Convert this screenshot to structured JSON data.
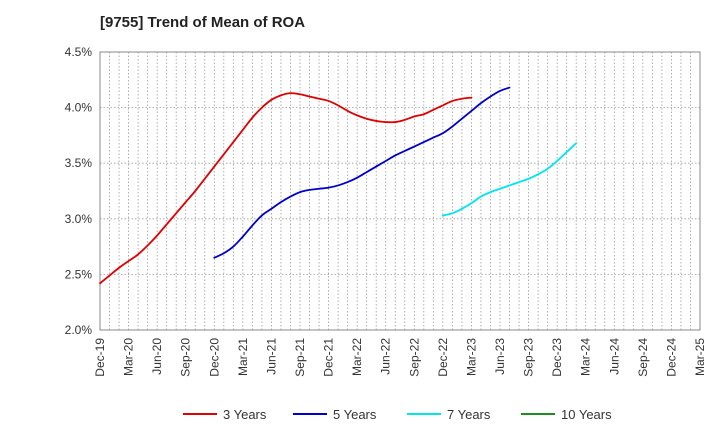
{
  "chart_data": {
    "type": "line",
    "title": "[9755]  Trend of Mean of ROA",
    "xlabel": "",
    "ylabel": "",
    "x_tick_labels": [
      "Dec-19",
      "Mar-20",
      "Jun-20",
      "Sep-20",
      "Dec-20",
      "Mar-21",
      "Jun-21",
      "Sep-21",
      "Dec-21",
      "Mar-22",
      "Jun-22",
      "Sep-22",
      "Dec-22",
      "Mar-23",
      "Jun-23",
      "Sep-23",
      "Dec-23",
      "Mar-24",
      "Jun-24",
      "Sep-24",
      "Dec-24",
      "Mar-25"
    ],
    "y_tick_labels": [
      "2.0%",
      "2.5%",
      "3.0%",
      "3.5%",
      "4.0%",
      "4.5%"
    ],
    "ylim": [
      2.0,
      4.5
    ],
    "grid": true,
    "legend_position": "bottom",
    "series": [
      {
        "name": "3 Years",
        "color": "#e00000",
        "values": [
          2.42,
          2.49,
          2.56,
          2.62,
          2.68,
          2.76,
          2.85,
          2.95,
          3.05,
          3.15,
          3.25,
          3.36,
          3.47,
          3.58,
          3.69,
          3.8,
          3.91,
          4.0,
          4.07,
          4.11,
          4.13,
          4.12,
          4.1,
          4.08,
          4.06,
          4.02,
          3.97,
          3.93,
          3.9,
          3.88,
          3.87,
          3.87,
          3.89,
          3.92,
          3.94,
          3.98,
          4.02,
          4.06,
          4.08,
          4.09
        ]
      },
      {
        "name": "5 Years",
        "color": "#0000cc",
        "values": [
          null,
          null,
          null,
          null,
          null,
          null,
          null,
          null,
          null,
          null,
          null,
          null,
          2.65,
          2.69,
          2.75,
          2.84,
          2.94,
          3.03,
          3.09,
          3.15,
          3.2,
          3.24,
          3.26,
          3.27,
          3.28,
          3.3,
          3.33,
          3.37,
          3.42,
          3.47,
          3.52,
          3.57,
          3.61,
          3.65,
          3.69,
          3.73,
          3.77,
          3.83,
          3.9,
          3.97,
          4.04,
          4.1,
          4.15,
          4.18
        ]
      },
      {
        "name": "7 Years",
        "color": "#00e5ee",
        "values": [
          null,
          null,
          null,
          null,
          null,
          null,
          null,
          null,
          null,
          null,
          null,
          null,
          null,
          null,
          null,
          null,
          null,
          null,
          null,
          null,
          null,
          null,
          null,
          null,
          null,
          null,
          null,
          null,
          null,
          null,
          null,
          null,
          null,
          null,
          null,
          null,
          3.03,
          3.05,
          3.09,
          3.14,
          3.2,
          3.24,
          3.27,
          3.3,
          3.33,
          3.36,
          3.4,
          3.45,
          3.52,
          3.6,
          3.68
        ]
      },
      {
        "name": "10 Years",
        "color": "#228b22",
        "values": []
      }
    ]
  }
}
